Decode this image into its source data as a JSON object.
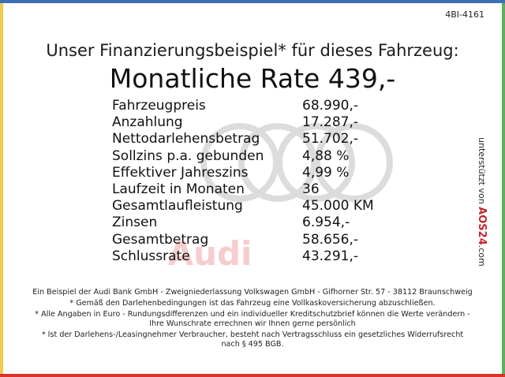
{
  "code": "4BI-4161",
  "title": "Unser Finanzierungsbeispiel* für dieses Fahrzeug:",
  "rate": "Monatliche Rate 439,-",
  "watermark": "Audi",
  "rows": [
    [
      "Fahrzeugpreis",
      "68.990,-"
    ],
    [
      "Anzahlung",
      "17.287,-"
    ],
    [
      "Nettodarlehensbetrag",
      "51.702,-"
    ],
    [
      "Sollzins p.a. gebunden",
      "4,88 %"
    ],
    [
      "Effektiver Jahreszins",
      "4,99 %"
    ],
    [
      "Laufzeit in Monaten",
      "36"
    ],
    [
      "Gesamtlaufleistung",
      "45.000 KM"
    ],
    [
      "Zinsen",
      "6.954,-"
    ],
    [
      "Gesamtbetrag",
      "58.656,-"
    ],
    [
      "Schlussrate",
      "43.291,-"
    ]
  ],
  "sponsor": {
    "prefix": "unterstützt von",
    "brand": "AOS24",
    "suffix": ".com"
  },
  "notes": [
    "Ein Beispiel der Audi Bank GmbH - Zweigniederlassung Volkswagen GmbH - Gifhorner Str. 57 - 38112 Braunschweig",
    "* Gemäß den Darlehenbedingungen ist das Fahrzeug eine Vollkaskoversicherung abzuschließen.",
    "* Alle Angaben in Euro - Rundungsdifferenzen und ein individueller Kreditschutzbrief können die Werte verändern - Ihre Wunschrate errechnen wir Ihnen gerne persönlich",
    "* Ist der Darlehens-/Leasingnehmer Verbraucher, besteht nach Vertragsschluss ein gesetzliches Widerrufsrecht nach § 495 BGB."
  ]
}
